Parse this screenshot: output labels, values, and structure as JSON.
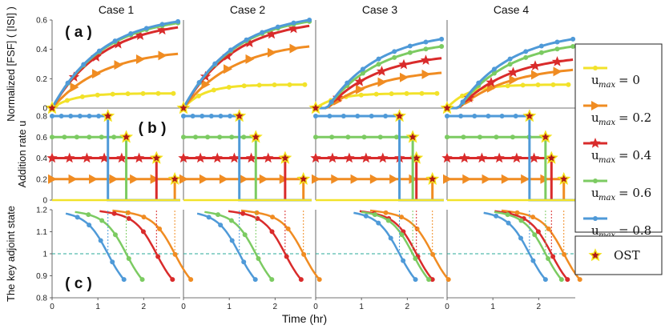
{
  "chart_data": {
    "type": "line",
    "xlabel": "Time (hr)",
    "cases": [
      "Case 1",
      "Case 2",
      "Case 3",
      "Case 4"
    ],
    "panel_labels": [
      "( a )",
      "( b )",
      "( c )"
    ],
    "x_ticks": [
      "0",
      "1",
      "2"
    ],
    "ylabel_a": "Normalized [FSF] ( [ISI] )",
    "ylabel_b": "Addition rate u",
    "ylabel_c": "The key adjoint state",
    "ylim_a": [
      0,
      0.6
    ],
    "yticks_a": [
      "0",
      "0.2",
      "0.4",
      "0.6"
    ],
    "ylim_b": [
      0,
      0.8
    ],
    "yticks_b": [
      "0",
      "0.2",
      "0.4",
      "0.6",
      "0.8"
    ],
    "ylim_c": [
      0.8,
      1.2
    ],
    "yticks_c": [
      "0.8",
      "0.9",
      "1",
      "1.1",
      "1.2"
    ],
    "xlim": [
      0,
      2.8
    ],
    "series": [
      {
        "name": "u_max = 0",
        "umax": "0",
        "color": "#f2e22a",
        "marker": "circle"
      },
      {
        "name": "u_max = 0.2",
        "umax": "0.2",
        "color": "#f08c22",
        "marker": "triangle"
      },
      {
        "name": "u_max = 0.4",
        "umax": "0.4",
        "color": "#d92b2b",
        "marker": "star"
      },
      {
        "name": "u_max = 0.6",
        "umax": "0.6",
        "color": "#7ccb62",
        "marker": "circle"
      },
      {
        "name": "u_max = 0.8",
        "umax": "0.8",
        "color": "#4f9ad8",
        "marker": "circle"
      }
    ],
    "ost_times": [
      [
        0,
        2.68,
        2.28,
        1.62,
        1.22
      ],
      [
        0,
        2.62,
        2.22,
        1.58,
        1.22
      ],
      [
        0,
        2.55,
        2.2,
        2.12,
        1.83
      ],
      [
        0,
        2.55,
        2.28,
        2.15,
        1.8
      ]
    ],
    "a_final": [
      [
        0.1,
        0.37,
        0.55,
        0.58,
        0.59
      ],
      [
        0.16,
        0.42,
        0.56,
        0.59,
        0.6
      ],
      [
        0.1,
        0.24,
        0.34,
        0.42,
        0.47
      ],
      [
        0.16,
        0.26,
        0.33,
        0.42,
        0.47
      ]
    ],
    "c_curves": [
      [
        [
          2.3,
          0.8,
          2.3,
          0.8
        ],
        [
          2.2,
          0.8,
          2.2,
          0.8
        ]
      ],
      [
        [
          2.3,
          0.8,
          2.3,
          0.8
        ],
        [
          2.2,
          0.8,
          2.2,
          0.8
        ]
      ],
      [
        [
          2.3,
          0.8,
          2.3,
          0.8
        ],
        [
          2.2,
          0.8,
          2.2,
          0.8
        ]
      ],
      [
        [
          2.3,
          0.8,
          2.3,
          0.8
        ],
        [
          2.2,
          0.8,
          2.2,
          0.8
        ]
      ]
    ],
    "reference_line_c": 1.0,
    "legend_entries": [
      "u_max = 0",
      "u_max = 0.2",
      "u_max = 0.4",
      "u_max = 0.6",
      "u_max = 0.8"
    ],
    "legend_ost": "OST",
    "legend_umax_label": "u",
    "legend_umax_sub": "max",
    "legend_values": [
      "= 0",
      "= 0.2",
      "= 0.4",
      "= 0.6",
      "= 0.8"
    ]
  }
}
